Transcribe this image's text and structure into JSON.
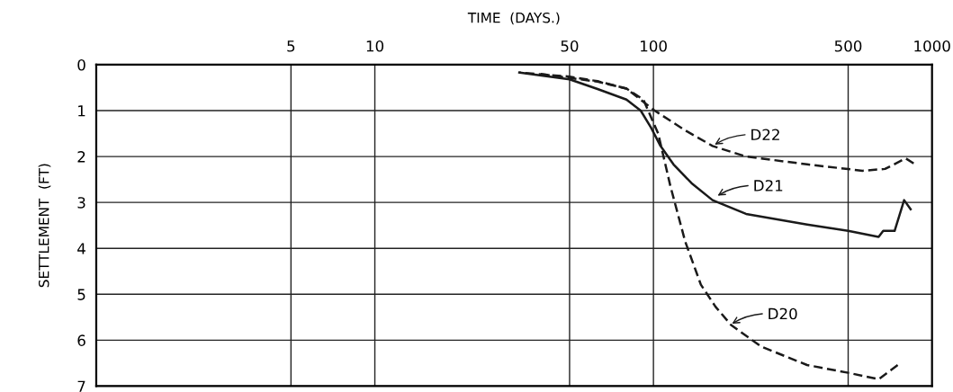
{
  "chart_data": {
    "type": "line",
    "xlabel": "TIME  (DAYS.)",
    "ylabel": "SETTLEMENT  (FT)",
    "log": "x",
    "xlim": [
      1,
      1000
    ],
    "xticks": [
      5,
      10,
      50,
      100,
      500,
      1000
    ],
    "ylim": [
      7,
      0
    ],
    "yticks": [
      0,
      1,
      2,
      3,
      4,
      5,
      6,
      7
    ],
    "grid": true,
    "marker": "none",
    "series": [
      {
        "color": "#1a1a1a",
        "line_style": "dashed",
        "x": [
          38,
          63,
          80,
          92,
          104,
          115,
          130,
          148,
          167,
          190,
          244,
          356,
          500,
          643,
          753
        ],
        "values": [
          0.19,
          0.37,
          0.52,
          0.76,
          1.5,
          2.64,
          3.85,
          4.79,
          5.27,
          5.67,
          6.14,
          6.54,
          6.71,
          6.85,
          6.54
        ]
      },
      {
        "color": "#1a1a1a",
        "line_style": "solid",
        "x": [
          33,
          50,
          63,
          80,
          90,
          98,
          106,
          118,
          137,
          163,
          215,
          356,
          500,
          643,
          668,
          734,
          794,
          838
        ],
        "values": [
          0.17,
          0.32,
          0.53,
          0.76,
          1.0,
          1.37,
          1.77,
          2.17,
          2.58,
          2.95,
          3.25,
          3.48,
          3.62,
          3.75,
          3.62,
          3.62,
          2.95,
          3.15
        ]
      },
      {
        "color": "#1a1a1a",
        "line_style": "dashed",
        "x": [
          33,
          50,
          63,
          80,
          101,
          130,
          163,
          215,
          356,
          563,
          678,
          805,
          859
        ],
        "values": [
          0.17,
          0.26,
          0.36,
          0.52,
          1.0,
          1.43,
          1.77,
          2.0,
          2.17,
          2.31,
          2.27,
          2.04,
          2.15
        ]
      }
    ],
    "annotations": [
      {
        "text": "D22",
        "x": 163,
        "y": 1.77
      },
      {
        "text": "D21",
        "x": 167,
        "y": 2.88
      },
      {
        "text": "D20",
        "x": 188,
        "y": 5.67
      }
    ]
  }
}
